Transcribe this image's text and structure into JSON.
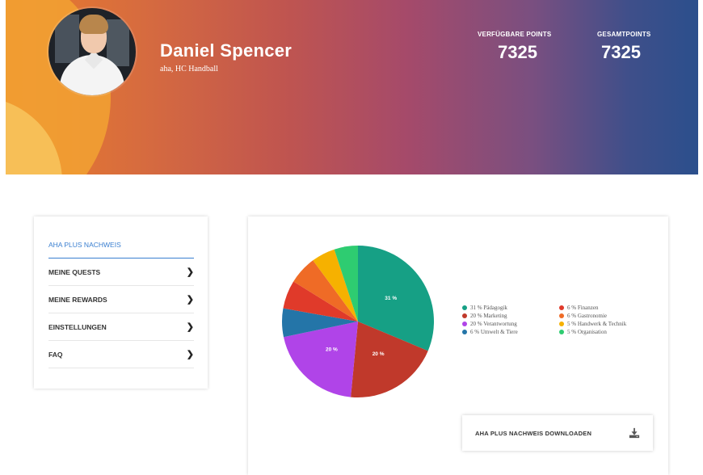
{
  "profile": {
    "name": "Daniel Spencer",
    "subtitle": "aha, HC Handball"
  },
  "stats": {
    "available_label": "VERFÜGBARE POINTS",
    "available_value": "7325",
    "total_label": "GESAMTPOINTS",
    "total_value": "7325"
  },
  "menu": {
    "items": [
      {
        "label": "AHA PLUS NACHWEIS",
        "active": true
      },
      {
        "label": "MEINE QUESTS",
        "active": false
      },
      {
        "label": "MEINE REWARDS",
        "active": false
      },
      {
        "label": "EINSTELLUNGEN",
        "active": false
      },
      {
        "label": "FAQ",
        "active": false
      }
    ]
  },
  "chart_data": {
    "type": "pie",
    "slices": [
      {
        "label": "31 % Pädagogik",
        "value": 31,
        "color": "#16a085",
        "show_label": "31 %"
      },
      {
        "label": "20 % Marketing",
        "value": 20,
        "color": "#c0392b",
        "show_label": "20 %"
      },
      {
        "label": "20 % Verantwortung",
        "value": 20,
        "color": "#b044e8",
        "show_label": "20 %"
      },
      {
        "label": "6 % Umwelt & Tiere",
        "value": 6,
        "color": "#2475a8",
        "show_label": ""
      },
      {
        "label": "6 % Finanzen",
        "value": 6,
        "color": "#e03a2a",
        "show_label": ""
      },
      {
        "label": "6 % Gastronomie",
        "value": 6,
        "color": "#ef6b26",
        "show_label": ""
      },
      {
        "label": "5 % Handwerk & Technik",
        "value": 5,
        "color": "#f6b100",
        "show_label": ""
      },
      {
        "label": "5 % Organisation",
        "value": 5,
        "color": "#2ecc71",
        "show_label": ""
      }
    ]
  },
  "legend": {
    "col1": [
      {
        "label": "31 % Pädagogik",
        "color": "#16a085"
      },
      {
        "label": "20 % Marketing",
        "color": "#c0392b"
      },
      {
        "label": "20 % Verantwortung",
        "color": "#b044e8"
      },
      {
        "label": "6 % Umwelt & Tiere",
        "color": "#2475a8"
      }
    ],
    "col2": [
      {
        "label": "6 % Finanzen",
        "color": "#e03a2a"
      },
      {
        "label": "6 % Gastronomie",
        "color": "#ef6b26"
      },
      {
        "label": "5 % Handwerk & Technik",
        "color": "#f6b100"
      },
      {
        "label": "5 % Organisation",
        "color": "#2ecc71"
      }
    ]
  },
  "download": {
    "label": "AHA PLUS NACHWEIS DOWNLOADEN",
    "icon": "download-icon"
  }
}
